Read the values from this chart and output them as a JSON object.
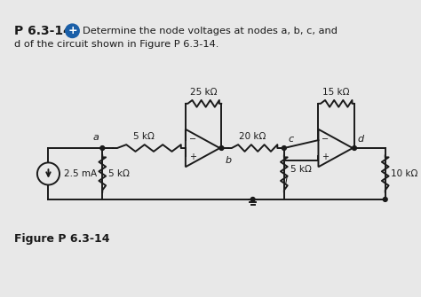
{
  "bg_color": "#e8e8e8",
  "plus_icon_color": "#1a5fa8",
  "font_color": "#1a1a1a",
  "figure_label": "Figure P 6.3-14",
  "current_source": "2.5 mA",
  "R1": "5 kΩ",
  "R2": "25 kΩ",
  "R3": "5 kΩ",
  "R4": "20 kΩ",
  "R5": "5 kΩ",
  "R6": "15 kΩ",
  "R7": "10 kΩ",
  "header1": "Determine the node voltages at nodes a, b, c, and",
  "header2": "d of the circuit shown in Figure P 6.3-14."
}
